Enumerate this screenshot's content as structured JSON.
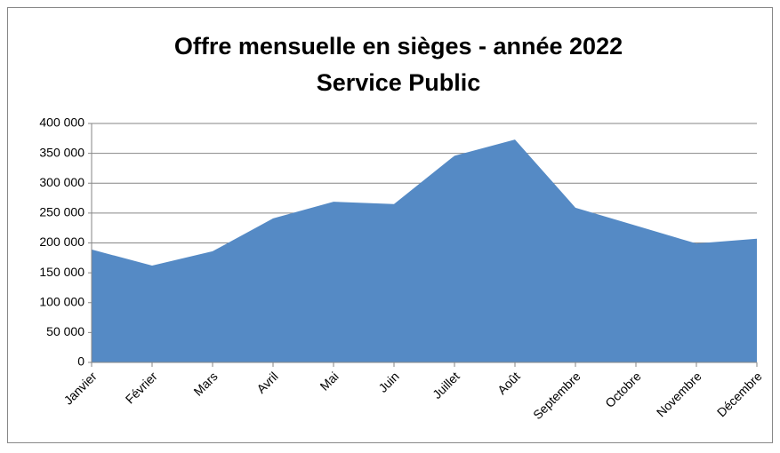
{
  "chart_data": {
    "type": "area",
    "title": "Offre mensuelle en sièges - année 2022",
    "subtitle": "Service Public",
    "categories": [
      "Janvier",
      "Février",
      "Mars",
      "Avril",
      "Mai",
      "Juin",
      "Juillet",
      "Août",
      "Septembre",
      "Octobre",
      "Novembre",
      "Décembre"
    ],
    "values": [
      189000,
      162000,
      186000,
      241000,
      269000,
      265000,
      346000,
      373000,
      259000,
      229000,
      199000,
      207000
    ],
    "color": "#558ac5",
    "ylim": [
      0,
      400000
    ],
    "yticks": [
      0,
      {
        "value": 50000,
        "label": "50 000"
      },
      {
        "value": 100000,
        "label": "100 000"
      },
      {
        "value": 150000,
        "label": "150 000"
      },
      {
        "value": 200000,
        "label": "200 000"
      },
      {
        "value": 250000,
        "label": "250 000"
      },
      {
        "value": 300000,
        "label": "300 000"
      },
      {
        "value": 350000,
        "label": "350 000"
      },
      {
        "value": 400000,
        "label": "400 000"
      }
    ],
    "grid": true
  }
}
